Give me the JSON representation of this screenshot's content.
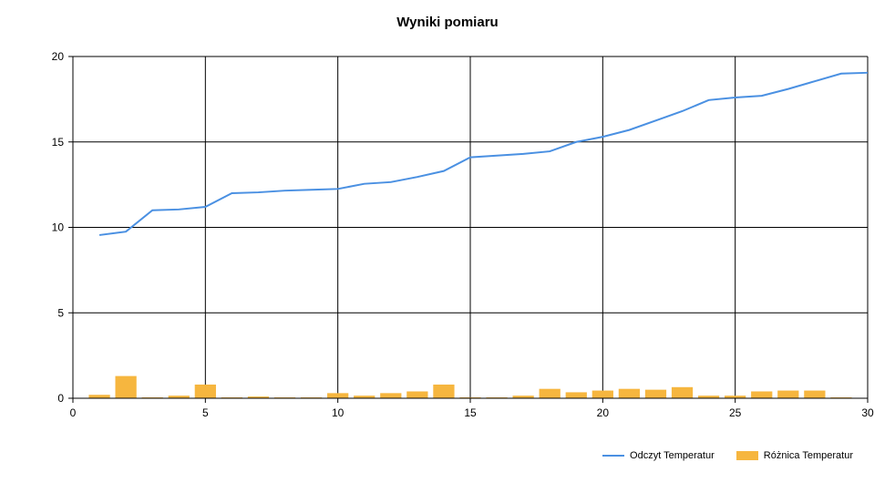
{
  "chart_data": {
    "type": "bar",
    "title": "Wyniki pomiaru",
    "xlim": [
      0,
      30
    ],
    "ylim": [
      0,
      20
    ],
    "x_ticks": [
      0,
      5,
      10,
      15,
      20,
      25,
      30
    ],
    "y_ticks": [
      0,
      5,
      10,
      15,
      20
    ],
    "grid": true,
    "legend_position": "bottom-right",
    "x": [
      1,
      2,
      3,
      4,
      5,
      6,
      7,
      8,
      9,
      10,
      11,
      12,
      13,
      14,
      15,
      16,
      17,
      18,
      19,
      20,
      21,
      22,
      23,
      24,
      25,
      26,
      27,
      28,
      29,
      30
    ],
    "series": [
      {
        "name": "Odczyt Temperatur",
        "kind": "line",
        "color": "#4a90e2",
        "values": [
          9.55,
          9.75,
          11.0,
          11.05,
          11.2,
          12.0,
          12.05,
          12.15,
          12.2,
          12.25,
          12.55,
          12.65,
          12.95,
          13.3,
          14.1,
          14.2,
          14.3,
          14.45,
          15.0,
          15.3,
          15.7,
          16.25,
          16.8,
          17.45,
          17.6,
          17.7,
          18.1,
          18.55,
          19.0,
          19.05
        ]
      },
      {
        "name": "Różnica Temperatur",
        "kind": "bar",
        "color": "#f6b63f",
        "values": [
          0.2,
          1.3,
          0.05,
          0.15,
          0.8,
          0.05,
          0.1,
          0.05,
          0.05,
          0.3,
          0.15,
          0.3,
          0.4,
          0.8,
          0.05,
          0.05,
          0.15,
          0.55,
          0.35,
          0.45,
          0.55,
          0.5,
          0.65,
          0.15,
          0.15,
          0.4,
          0.45,
          0.45,
          0.05,
          0.0
        ]
      }
    ]
  }
}
